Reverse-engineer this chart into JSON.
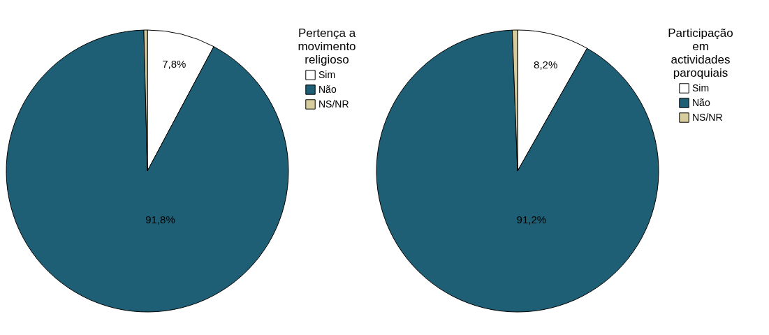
{
  "chart_data": [
    {
      "type": "pie",
      "legend_title": "Pertença a movimento religioso",
      "categories": [
        "Sim",
        "Não",
        "NS/NR"
      ],
      "values": [
        7.8,
        91.8,
        0.4
      ],
      "colors": [
        "#ffffff",
        "#1f5f75",
        "#d6cc9c"
      ],
      "value_labels": [
        "7,8%",
        "91,8%",
        null
      ],
      "legend": "top right"
    },
    {
      "type": "pie",
      "legend_title": "Participação em actividades paroquiais",
      "categories": [
        "Sim",
        "Não",
        "NS/NR"
      ],
      "values": [
        8.2,
        91.2,
        0.6
      ],
      "colors": [
        "#ffffff",
        "#1f5f75",
        "#d6cc9c"
      ],
      "value_labels": [
        "8,2%",
        "91,2%",
        null
      ],
      "legend": "top right"
    }
  ]
}
